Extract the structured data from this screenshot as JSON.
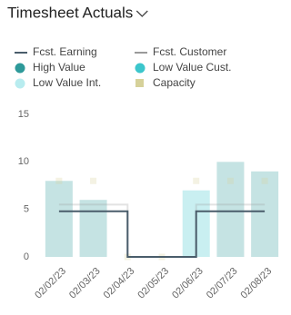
{
  "chart_data": {
    "type": "combo",
    "title": "Timesheet Actuals",
    "categories": [
      "02/02/23",
      "02/03/23",
      "02/04/23",
      "02/05/23",
      "02/06/23",
      "02/07/23",
      "02/08/23"
    ],
    "series": [
      {
        "name": "Fcst. Earning",
        "kind": "step-line",
        "color": "#4a5d6b",
        "values": [
          4.8,
          4.8,
          0,
          0,
          4.8,
          4.8,
          4.8
        ]
      },
      {
        "name": "Fcst. Customer",
        "kind": "step-line",
        "color": "#9a9a9a",
        "values": [
          5.5,
          5.5,
          0,
          0,
          5.5,
          5.5,
          5.5
        ]
      },
      {
        "name": "High Value",
        "kind": "bar",
        "color": "#2e9a9a",
        "values": [
          8,
          6,
          0,
          0,
          0,
          10,
          9
        ]
      },
      {
        "name": "Low Value Cust.",
        "kind": "bar",
        "color": "#3cc6cc",
        "values": [
          0,
          0,
          0,
          0,
          7,
          0,
          0
        ]
      },
      {
        "name": "Low Value Int.",
        "kind": "bar",
        "color": "#b8ecef",
        "values": [
          0,
          0,
          0,
          0,
          0,
          0,
          0
        ]
      },
      {
        "name": "Capacity",
        "kind": "point",
        "color": "#d6d19a",
        "values": [
          8,
          8,
          0,
          0,
          8,
          8,
          8
        ]
      }
    ],
    "ylim": [
      0,
      15
    ],
    "yticks": [
      0,
      5,
      10,
      15
    ],
    "grid": false
  }
}
